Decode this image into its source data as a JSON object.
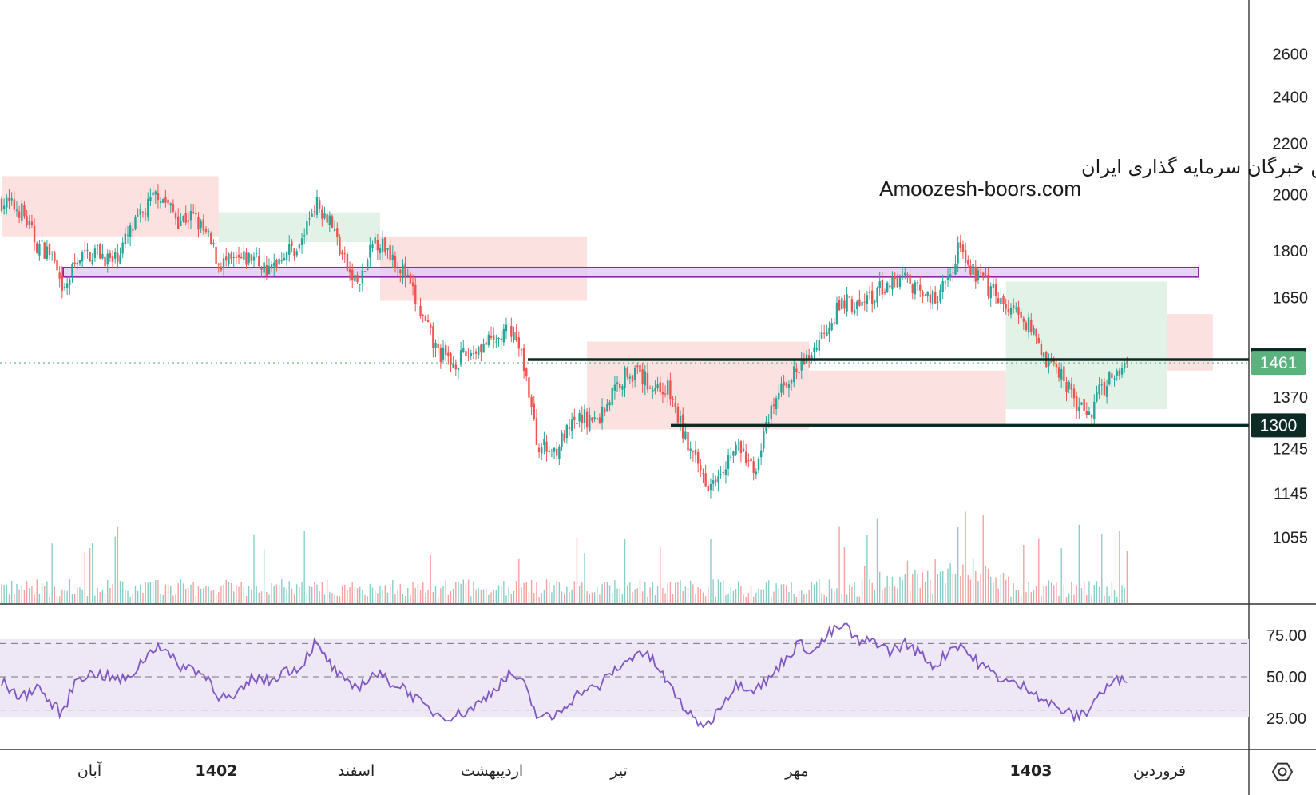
{
  "watermark": {
    "line1": "انجمن خبرگان سرمایه گذاری ایران",
    "line2": "Amoozesh-boors.com"
  },
  "colors": {
    "up": "#26a69a",
    "down": "#ef5350",
    "support_line": "#0d2b25",
    "zone_fill": "#e6c8f0",
    "zone_border": "#8e24aa",
    "rsi_line": "#7e57c2",
    "rsi_band": "#ede7f6",
    "cloud_red": "#fbdada",
    "cloud_green": "#dcefe0",
    "last_price_tag": "#5ab27f",
    "level_tag": "#0d2b25"
  },
  "price_axis": {
    "ticks": [
      "2600",
      "2400",
      "2200",
      "2000",
      "1800",
      "1650",
      "1370",
      "1245",
      "1145",
      "1055"
    ],
    "scale": "log",
    "range": [
      990,
      2750
    ]
  },
  "rsi_axis": {
    "ticks": [
      "75.00",
      "50.00",
      "25.00"
    ],
    "range": [
      14,
      86
    ],
    "band": [
      30,
      70
    ]
  },
  "time_axis": [
    {
      "label": "آبان",
      "bold": false
    },
    {
      "label": "1402",
      "bold": true
    },
    {
      "label": "اسفند",
      "bold": false
    },
    {
      "label": "اردیبهشت",
      "bold": false
    },
    {
      "label": "تیر",
      "bold": false
    },
    {
      "label": "مهر",
      "bold": false
    },
    {
      "label": "1403",
      "bold": true
    },
    {
      "label": "فروردین",
      "bold": false
    }
  ],
  "price_tags": [
    {
      "label": "1470",
      "value": 1470,
      "kind": "level"
    },
    {
      "label": "1461",
      "value": 1461,
      "kind": "last"
    },
    {
      "label": "1300",
      "value": 1300,
      "kind": "level"
    }
  ],
  "chart_data": {
    "type": "candlestick",
    "levels": [
      {
        "name": "resistance",
        "value": 1470
      },
      {
        "name": "support",
        "value": 1300
      }
    ],
    "zone": {
      "low": 1715,
      "high": 1745
    },
    "last_price": 1461,
    "close_anchors": [
      [
        0,
        1975
      ],
      [
        8,
        1940
      ],
      [
        14,
        1820
      ],
      [
        20,
        1790
      ],
      [
        24,
        1650
      ],
      [
        30,
        1775
      ],
      [
        38,
        1800
      ],
      [
        44,
        1760
      ],
      [
        50,
        1850
      ],
      [
        56,
        1930
      ],
      [
        62,
        2010
      ],
      [
        70,
        1910
      ],
      [
        76,
        1920
      ],
      [
        82,
        1840
      ],
      [
        86,
        1760
      ],
      [
        92,
        1760
      ],
      [
        100,
        1780
      ],
      [
        106,
        1730
      ],
      [
        112,
        1800
      ],
      [
        118,
        1810
      ],
      [
        124,
        1970
      ],
      [
        130,
        1920
      ],
      [
        134,
        1810
      ],
      [
        138,
        1720
      ],
      [
        142,
        1690
      ],
      [
        148,
        1840
      ],
      [
        154,
        1800
      ],
      [
        160,
        1720
      ],
      [
        166,
        1600
      ],
      [
        172,
        1500
      ],
      [
        178,
        1460
      ],
      [
        184,
        1480
      ],
      [
        190,
        1510
      ],
      [
        196,
        1520
      ],
      [
        202,
        1560
      ],
      [
        207,
        1460
      ],
      [
        212,
        1260
      ],
      [
        218,
        1235
      ],
      [
        224,
        1280
      ],
      [
        230,
        1320
      ],
      [
        236,
        1310
      ],
      [
        242,
        1380
      ],
      [
        248,
        1440
      ],
      [
        252,
        1430
      ],
      [
        258,
        1400
      ],
      [
        264,
        1390
      ],
      [
        268,
        1320
      ],
      [
        274,
        1220
      ],
      [
        280,
        1170
      ],
      [
        286,
        1210
      ],
      [
        292,
        1250
      ],
      [
        298,
        1190
      ],
      [
        304,
        1310
      ],
      [
        310,
        1410
      ],
      [
        316,
        1440
      ],
      [
        322,
        1500
      ],
      [
        328,
        1580
      ],
      [
        334,
        1640
      ],
      [
        340,
        1620
      ],
      [
        346,
        1660
      ],
      [
        352,
        1700
      ],
      [
        358,
        1720
      ],
      [
        364,
        1660
      ],
      [
        370,
        1640
      ],
      [
        376,
        1720
      ],
      [
        380,
        1840
      ],
      [
        384,
        1740
      ],
      [
        390,
        1690
      ],
      [
        396,
        1650
      ],
      [
        402,
        1610
      ],
      [
        408,
        1560
      ],
      [
        414,
        1470
      ],
      [
        420,
        1430
      ],
      [
        426,
        1360
      ],
      [
        430,
        1310
      ],
      [
        434,
        1370
      ],
      [
        440,
        1430
      ],
      [
        446,
        1461
      ]
    ],
    "rsi_anchors": [
      [
        0,
        47
      ],
      [
        8,
        37
      ],
      [
        14,
        45
      ],
      [
        20,
        33
      ],
      [
        24,
        28
      ],
      [
        30,
        50
      ],
      [
        38,
        52
      ],
      [
        44,
        49
      ],
      [
        50,
        48
      ],
      [
        56,
        60
      ],
      [
        62,
        70
      ],
      [
        70,
        57
      ],
      [
        76,
        55
      ],
      [
        82,
        49
      ],
      [
        86,
        39
      ],
      [
        92,
        36
      ],
      [
        100,
        50
      ],
      [
        106,
        47
      ],
      [
        112,
        54
      ],
      [
        118,
        55
      ],
      [
        124,
        70
      ],
      [
        130,
        58
      ],
      [
        134,
        50
      ],
      [
        138,
        44
      ],
      [
        142,
        45
      ],
      [
        148,
        52
      ],
      [
        154,
        47
      ],
      [
        160,
        43
      ],
      [
        166,
        34
      ],
      [
        172,
        28
      ],
      [
        178,
        26
      ],
      [
        184,
        29
      ],
      [
        190,
        35
      ],
      [
        196,
        44
      ],
      [
        202,
        52
      ],
      [
        207,
        45
      ],
      [
        212,
        27
      ],
      [
        218,
        25
      ],
      [
        224,
        34
      ],
      [
        230,
        42
      ],
      [
        236,
        43
      ],
      [
        242,
        53
      ],
      [
        248,
        59
      ],
      [
        252,
        66
      ],
      [
        258,
        60
      ],
      [
        264,
        46
      ],
      [
        268,
        37
      ],
      [
        274,
        24
      ],
      [
        280,
        21
      ],
      [
        286,
        36
      ],
      [
        292,
        46
      ],
      [
        298,
        43
      ],
      [
        304,
        48
      ],
      [
        310,
        60
      ],
      [
        316,
        70
      ],
      [
        322,
        65
      ],
      [
        328,
        76
      ],
      [
        334,
        81
      ],
      [
        340,
        70
      ],
      [
        346,
        72
      ],
      [
        352,
        65
      ],
      [
        358,
        70
      ],
      [
        364,
        64
      ],
      [
        370,
        56
      ],
      [
        376,
        67
      ],
      [
        380,
        70
      ],
      [
        384,
        62
      ],
      [
        390,
        55
      ],
      [
        396,
        49
      ],
      [
        402,
        45
      ],
      [
        408,
        43
      ],
      [
        414,
        35
      ],
      [
        420,
        30
      ],
      [
        426,
        26
      ],
      [
        430,
        29
      ],
      [
        434,
        38
      ],
      [
        440,
        46
      ],
      [
        446,
        50
      ]
    ],
    "ichimoku_cloud": [
      {
        "from": 0,
        "to": 86,
        "top": 2070,
        "bottom": 1850,
        "color": "red"
      },
      {
        "from": 86,
        "to": 150,
        "top": 1935,
        "bottom": 1830,
        "color": "green"
      },
      {
        "from": 150,
        "to": 232,
        "top": 1850,
        "bottom": 1640,
        "color": "red"
      },
      {
        "from": 232,
        "to": 320,
        "top": 1520,
        "bottom": 1290,
        "color": "red"
      },
      {
        "from": 320,
        "to": 398,
        "top": 1440,
        "bottom": 1300,
        "color": "red"
      },
      {
        "from": 398,
        "to": 462,
        "top": 1700,
        "bottom": 1340,
        "color": "green"
      },
      {
        "from": 462,
        "to": 480,
        "top": 1600,
        "bottom": 1440,
        "color": "red"
      }
    ]
  }
}
